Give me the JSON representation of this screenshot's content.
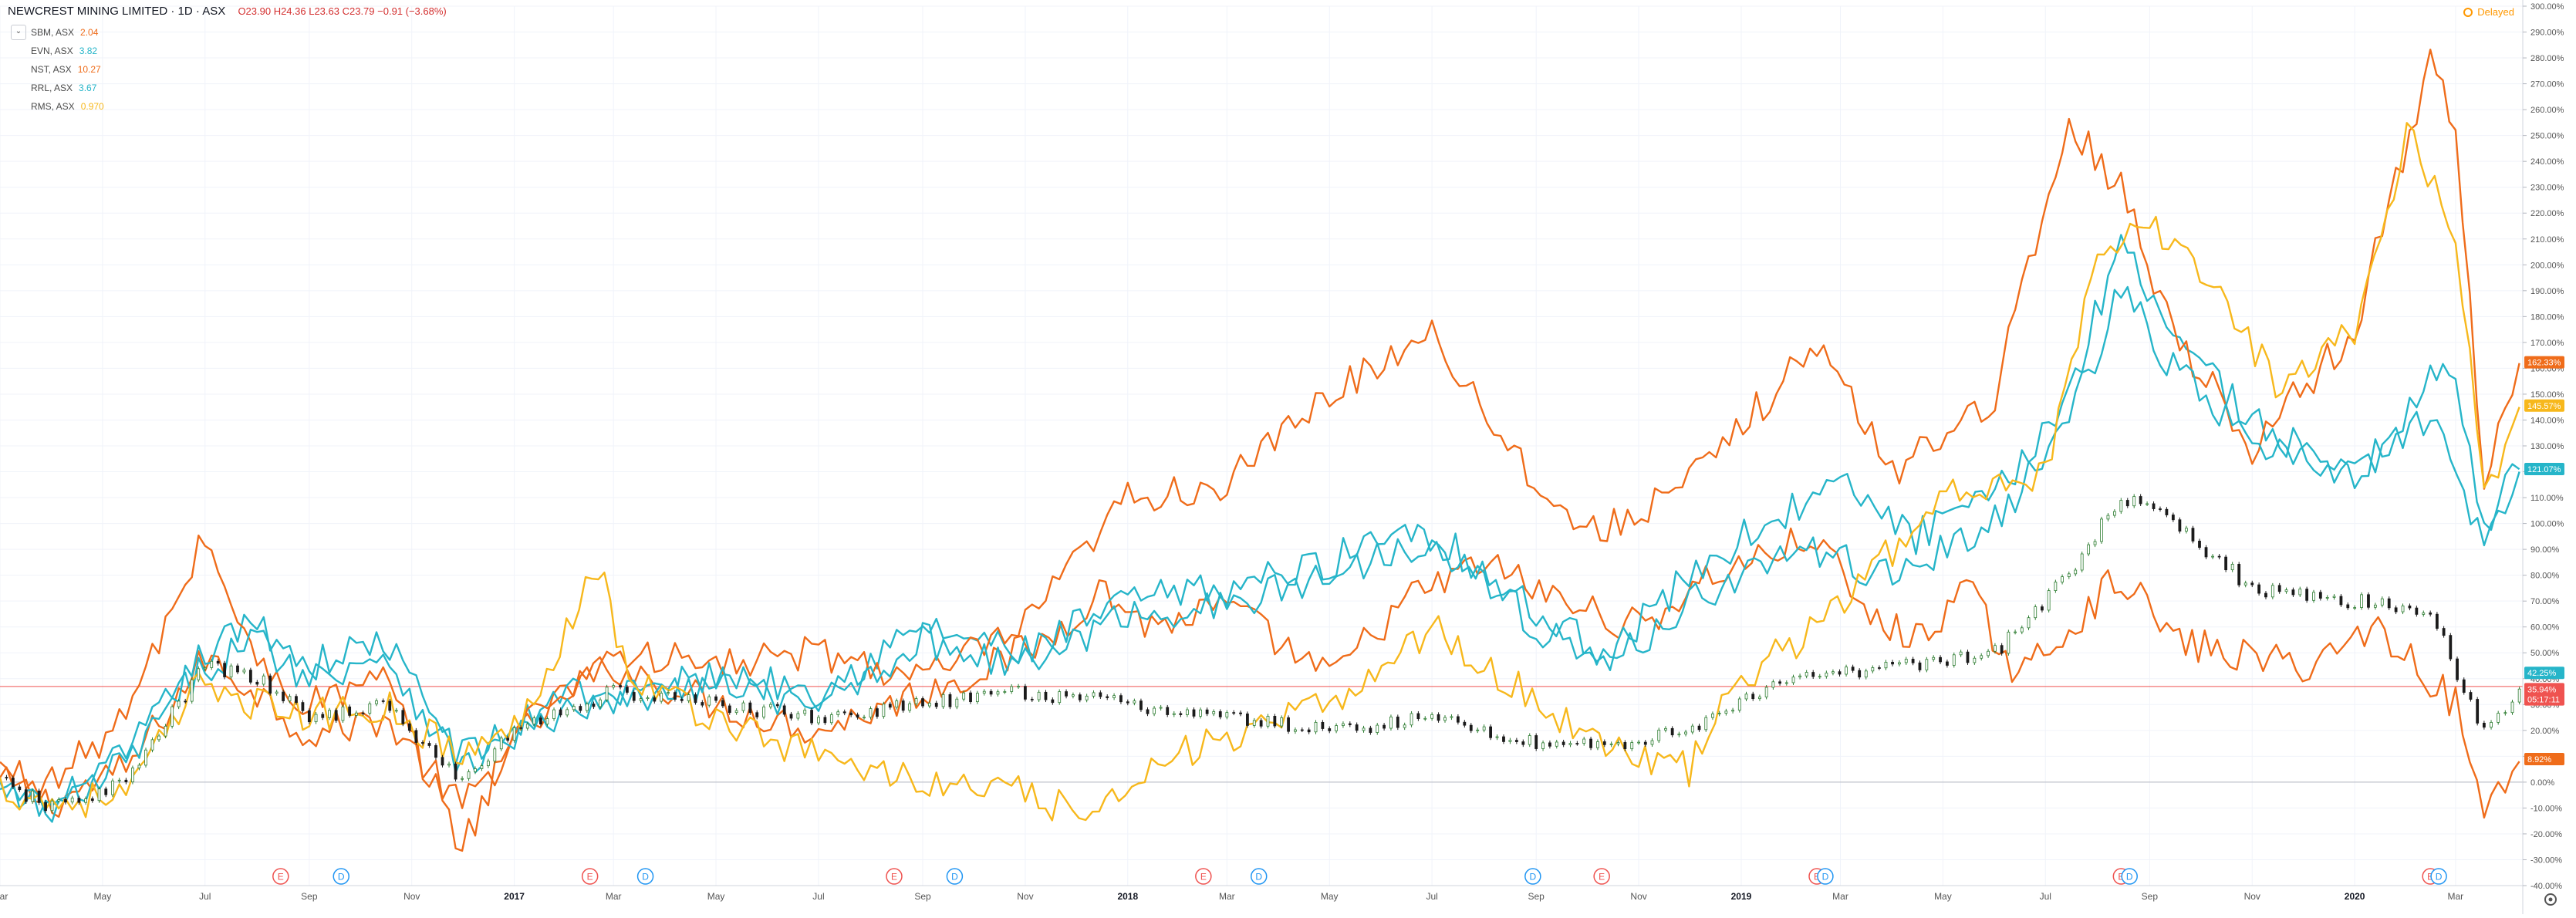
{
  "header": {
    "symbol": "NEWCREST MINING LIMITED · 1D · ASX",
    "ohlc": "O23.90 H24.36 L23.63 C23.79 −0.91 (−3.68%)"
  },
  "delayed_label": "Delayed",
  "legend": [
    {
      "symbol": "SBM, ASX",
      "value": "2.04",
      "color": "#ef6c1a"
    },
    {
      "symbol": "EVN, ASX",
      "value": "3.82",
      "color": "#26b5c9"
    },
    {
      "symbol": "NST, ASX",
      "value": "10.27",
      "color": "#ef6c1a"
    },
    {
      "symbol": "RRL, ASX",
      "value": "3.67",
      "color": "#26b5c9"
    },
    {
      "symbol": "RMS, ASX",
      "value": "0.970",
      "color": "#f7b81c"
    }
  ],
  "icons": {
    "collapse": "chevron-down-icon",
    "delayed": "clock-icon",
    "settings": "gear-icon"
  },
  "chart_data": {
    "type": "line",
    "y_axis": {
      "min": -40,
      "max": 300,
      "step": 10,
      "unit": "%",
      "position": "right"
    },
    "x_ticks": [
      "Mar",
      "May",
      "Jul",
      "Sep",
      "Nov",
      "2017",
      "Mar",
      "May",
      "Jul",
      "Sep",
      "Nov",
      "2018",
      "Mar",
      "May",
      "Jul",
      "Sep",
      "Nov",
      "2019",
      "Mar",
      "May",
      "Jul",
      "Sep",
      "Nov",
      "2020",
      "Mar"
    ],
    "x_range": [
      "2016-03-01",
      "2020-04-10"
    ],
    "grid": true,
    "reference_lines": [
      {
        "y": 0,
        "color": "#b2b5be"
      },
      {
        "y": 37,
        "color": "#ef5350"
      }
    ],
    "series": [
      {
        "name": "SBM, ASX",
        "color": "#ef6c1a",
        "points": [
          [
            "2016-03-01",
            0
          ],
          [
            "2016-04-01",
            -8
          ],
          [
            "2016-05-15",
            5
          ],
          [
            "2016-07-01",
            48
          ],
          [
            "2016-08-01",
            35
          ],
          [
            "2016-09-01",
            18
          ],
          [
            "2016-10-15",
            25
          ],
          [
            "2016-12-01",
            -10
          ],
          [
            "2017-01-01",
            15
          ],
          [
            "2017-02-01",
            35
          ],
          [
            "2017-03-01",
            45
          ],
          [
            "2017-05-01",
            30
          ],
          [
            "2017-07-01",
            20
          ],
          [
            "2017-09-01",
            35
          ],
          [
            "2017-10-01",
            42
          ],
          [
            "2017-11-15",
            55
          ],
          [
            "2017-12-15",
            75
          ],
          [
            "2018-01-15",
            60
          ],
          [
            "2018-03-01",
            68
          ],
          [
            "2018-05-01",
            40
          ],
          [
            "2018-06-15",
            70
          ],
          [
            "2018-08-01",
            85
          ],
          [
            "2018-09-15",
            70
          ],
          [
            "2018-11-01",
            60
          ],
          [
            "2018-12-15",
            80
          ],
          [
            "2019-02-15",
            95
          ],
          [
            "2019-03-15",
            65
          ],
          [
            "2019-04-15",
            55
          ],
          [
            "2019-05-15",
            75
          ],
          [
            "2019-06-15",
            40
          ],
          [
            "2019-07-15",
            60
          ],
          [
            "2019-08-15",
            80
          ],
          [
            "2019-09-15",
            55
          ],
          [
            "2019-10-15",
            50
          ],
          [
            "2019-12-01",
            45
          ],
          [
            "2020-01-15",
            60
          ],
          [
            "2020-02-15",
            40
          ],
          [
            "2020-03-01",
            30
          ],
          [
            "2020-03-18",
            -12
          ],
          [
            "2020-04-08",
            8
          ]
        ]
      },
      {
        "name": "EVN, ASX",
        "color": "#26b5c9",
        "points": [
          [
            "2016-03-01",
            -5
          ],
          [
            "2016-04-01",
            -10
          ],
          [
            "2016-05-15",
            10
          ],
          [
            "2016-07-01",
            50
          ],
          [
            "2016-08-01",
            62
          ],
          [
            "2016-09-01",
            45
          ],
          [
            "2016-10-15",
            55
          ],
          [
            "2016-12-01",
            10
          ],
          [
            "2017-01-01",
            20
          ],
          [
            "2017-02-01",
            38
          ],
          [
            "2017-03-01",
            30
          ],
          [
            "2017-05-01",
            42
          ],
          [
            "2017-07-01",
            35
          ],
          [
            "2017-09-01",
            60
          ],
          [
            "2017-11-01",
            50
          ],
          [
            "2018-01-01",
            70
          ],
          [
            "2018-03-01",
            75
          ],
          [
            "2018-05-01",
            85
          ],
          [
            "2018-06-15",
            100
          ],
          [
            "2018-07-15",
            90
          ],
          [
            "2018-09-01",
            65
          ],
          [
            "2018-10-15",
            50
          ],
          [
            "2018-12-01",
            80
          ],
          [
            "2019-01-15",
            100
          ],
          [
            "2019-03-01",
            115
          ],
          [
            "2019-04-15",
            95
          ],
          [
            "2019-06-01",
            110
          ],
          [
            "2019-07-15",
            150
          ],
          [
            "2019-08-15",
            210
          ],
          [
            "2019-09-15",
            175
          ],
          [
            "2019-11-01",
            140
          ],
          [
            "2020-01-01",
            115
          ],
          [
            "2020-02-15",
            155
          ],
          [
            "2020-03-01",
            160
          ],
          [
            "2020-03-18",
            100
          ],
          [
            "2020-04-08",
            121
          ]
        ]
      },
      {
        "name": "NST, ASX",
        "color": "#ef6c1a",
        "points": [
          [
            "2016-03-01",
            5
          ],
          [
            "2016-04-01",
            0
          ],
          [
            "2016-05-15",
            25
          ],
          [
            "2016-07-01",
            95
          ],
          [
            "2016-08-01",
            45
          ],
          [
            "2016-09-01",
            30
          ],
          [
            "2016-10-15",
            40
          ],
          [
            "2016-12-01",
            -25
          ],
          [
            "2017-01-01",
            20
          ],
          [
            "2017-03-01",
            50
          ],
          [
            "2017-05-01",
            45
          ],
          [
            "2017-07-01",
            50
          ],
          [
            "2017-09-01",
            40
          ],
          [
            "2017-11-01",
            60
          ],
          [
            "2018-01-01",
            110
          ],
          [
            "2018-03-01",
            115
          ],
          [
            "2018-05-01",
            150
          ],
          [
            "2018-07-01",
            175
          ],
          [
            "2018-08-15",
            130
          ],
          [
            "2018-10-01",
            95
          ],
          [
            "2018-12-01",
            115
          ],
          [
            "2019-02-15",
            170
          ],
          [
            "2019-04-01",
            120
          ],
          [
            "2019-06-01",
            150
          ],
          [
            "2019-07-15",
            255
          ],
          [
            "2019-08-15",
            230
          ],
          [
            "2019-09-15",
            175
          ],
          [
            "2019-11-01",
            130
          ],
          [
            "2020-01-01",
            175
          ],
          [
            "2020-02-15",
            280
          ],
          [
            "2020-03-01",
            250
          ],
          [
            "2020-03-18",
            120
          ],
          [
            "2020-04-08",
            162
          ]
        ]
      },
      {
        "name": "RRL, ASX",
        "color": "#26b5c9",
        "points": [
          [
            "2016-03-01",
            -3
          ],
          [
            "2016-04-01",
            -12
          ],
          [
            "2016-05-15",
            8
          ],
          [
            "2016-07-01",
            45
          ],
          [
            "2016-08-01",
            55
          ],
          [
            "2016-09-01",
            40
          ],
          [
            "2016-10-15",
            50
          ],
          [
            "2016-12-01",
            5
          ],
          [
            "2017-01-01",
            18
          ],
          [
            "2017-03-01",
            32
          ],
          [
            "2017-05-01",
            38
          ],
          [
            "2017-07-01",
            30
          ],
          [
            "2017-09-01",
            55
          ],
          [
            "2017-11-01",
            45
          ],
          [
            "2018-01-01",
            65
          ],
          [
            "2018-03-01",
            68
          ],
          [
            "2018-05-01",
            80
          ],
          [
            "2018-07-01",
            95
          ],
          [
            "2018-09-01",
            60
          ],
          [
            "2018-10-15",
            45
          ],
          [
            "2018-12-01",
            70
          ],
          [
            "2019-02-01",
            90
          ],
          [
            "2019-04-01",
            80
          ],
          [
            "2019-06-01",
            100
          ],
          [
            "2019-07-15",
            140
          ],
          [
            "2019-08-15",
            190
          ],
          [
            "2019-09-15",
            160
          ],
          [
            "2019-11-01",
            130
          ],
          [
            "2020-01-01",
            120
          ],
          [
            "2020-02-15",
            140
          ],
          [
            "2020-03-18",
            95
          ],
          [
            "2020-04-08",
            120
          ]
        ]
      },
      {
        "name": "RMS, ASX",
        "color": "#f7b81c",
        "points": [
          [
            "2016-03-01",
            -2
          ],
          [
            "2016-04-01",
            -8
          ],
          [
            "2016-05-15",
            -5
          ],
          [
            "2016-07-01",
            40
          ],
          [
            "2016-08-01",
            30
          ],
          [
            "2016-09-01",
            25
          ],
          [
            "2016-10-15",
            30
          ],
          [
            "2016-12-01",
            10
          ],
          [
            "2017-01-01",
            20
          ],
          [
            "2017-02-01",
            60
          ],
          [
            "2017-02-20",
            85
          ],
          [
            "2017-03-10",
            40
          ],
          [
            "2017-05-01",
            25
          ],
          [
            "2017-07-01",
            10
          ],
          [
            "2017-09-01",
            0
          ],
          [
            "2017-11-01",
            -5
          ],
          [
            "2017-12-15",
            -15
          ],
          [
            "2018-01-15",
            10
          ],
          [
            "2018-03-01",
            15
          ],
          [
            "2018-05-01",
            30
          ],
          [
            "2018-06-01",
            45
          ],
          [
            "2018-07-01",
            60
          ],
          [
            "2018-08-01",
            45
          ],
          [
            "2018-09-15",
            25
          ],
          [
            "2018-11-01",
            10
          ],
          [
            "2018-12-01",
            5
          ],
          [
            "2019-01-01",
            40
          ],
          [
            "2019-02-15",
            60
          ],
          [
            "2019-04-01",
            90
          ],
          [
            "2019-05-15",
            115
          ],
          [
            "2019-07-01",
            120
          ],
          [
            "2019-08-01",
            200
          ],
          [
            "2019-09-01",
            215
          ],
          [
            "2019-10-01",
            200
          ],
          [
            "2019-11-15",
            155
          ],
          [
            "2020-01-01",
            175
          ],
          [
            "2020-02-01",
            250
          ],
          [
            "2020-03-01",
            215
          ],
          [
            "2020-03-18",
            110
          ],
          [
            "2020-04-08",
            145
          ]
        ]
      },
      {
        "name": "NEWCREST MINING LIMITED",
        "color": "#1b1b1b",
        "style": "candles",
        "points": [
          [
            "2016-03-01",
            0
          ],
          [
            "2016-04-01",
            -10
          ],
          [
            "2016-05-15",
            0
          ],
          [
            "2016-07-01",
            45
          ],
          [
            "2016-08-01",
            40
          ],
          [
            "2016-09-01",
            25
          ],
          [
            "2016-10-15",
            30
          ],
          [
            "2016-12-01",
            0
          ],
          [
            "2017-01-01",
            20
          ],
          [
            "2017-03-01",
            35
          ],
          [
            "2017-05-01",
            30
          ],
          [
            "2017-07-01",
            25
          ],
          [
            "2017-09-01",
            30
          ],
          [
            "2017-11-01",
            35
          ],
          [
            "2018-01-01",
            30
          ],
          [
            "2018-03-01",
            25
          ],
          [
            "2018-05-01",
            20
          ],
          [
            "2018-07-01",
            25
          ],
          [
            "2018-09-01",
            15
          ],
          [
            "2018-11-01",
            15
          ],
          [
            "2018-12-15",
            25
          ],
          [
            "2019-02-01",
            40
          ],
          [
            "2019-04-01",
            45
          ],
          [
            "2019-06-01",
            50
          ],
          [
            "2019-07-15",
            80
          ],
          [
            "2019-08-15",
            110
          ],
          [
            "2019-09-15",
            100
          ],
          [
            "2019-11-01",
            75
          ],
          [
            "2020-01-01",
            70
          ],
          [
            "2020-02-15",
            65
          ],
          [
            "2020-03-18",
            20
          ],
          [
            "2020-04-08",
            36
          ]
        ]
      }
    ],
    "right_labels": [
      {
        "text": "162.33%",
        "y": 162.33,
        "color": "#ef6c1a"
      },
      {
        "text": "145.57%",
        "y": 145.57,
        "color": "#f7b81c"
      },
      {
        "text": "121.07%",
        "y": 121.07,
        "color": "#26b5c9"
      },
      {
        "text": "42.25%",
        "y": 42.25,
        "color": "#26b5c9"
      },
      {
        "text": "35.94%",
        "y": 35.94,
        "color": "#ef5350"
      },
      {
        "text": "05:17:11",
        "y": 32.0,
        "color": "#ef5350"
      },
      {
        "text": "8.92%",
        "y": 8.92,
        "color": "#ef6c1a"
      }
    ],
    "event_markers": [
      {
        "label": "E",
        "date": "2016-08-15",
        "color": "#ef5350"
      },
      {
        "label": "D",
        "date": "2016-09-20",
        "color": "#2196f3"
      },
      {
        "label": "E",
        "date": "2017-02-15",
        "color": "#ef5350"
      },
      {
        "label": "D",
        "date": "2017-03-20",
        "color": "#2196f3"
      },
      {
        "label": "E",
        "date": "2017-08-15",
        "color": "#ef5350"
      },
      {
        "label": "D",
        "date": "2017-09-20",
        "color": "#2196f3"
      },
      {
        "label": "E",
        "date": "2018-02-15",
        "color": "#ef5350"
      },
      {
        "label": "D",
        "date": "2018-03-20",
        "color": "#2196f3"
      },
      {
        "label": "D",
        "date": "2018-08-30",
        "color": "#2196f3"
      },
      {
        "label": "E",
        "date": "2018-10-10",
        "color": "#ef5350"
      },
      {
        "label": "E",
        "date": "2019-02-15",
        "color": "#ef5350"
      },
      {
        "label": "D",
        "date": "2019-02-20",
        "color": "#2196f3"
      },
      {
        "label": "E",
        "date": "2019-08-15",
        "color": "#ef5350"
      },
      {
        "label": "D",
        "date": "2019-08-20",
        "color": "#2196f3"
      },
      {
        "label": "E",
        "date": "2020-02-15",
        "color": "#ef5350"
      },
      {
        "label": "D",
        "date": "2020-02-20",
        "color": "#2196f3"
      }
    ]
  }
}
